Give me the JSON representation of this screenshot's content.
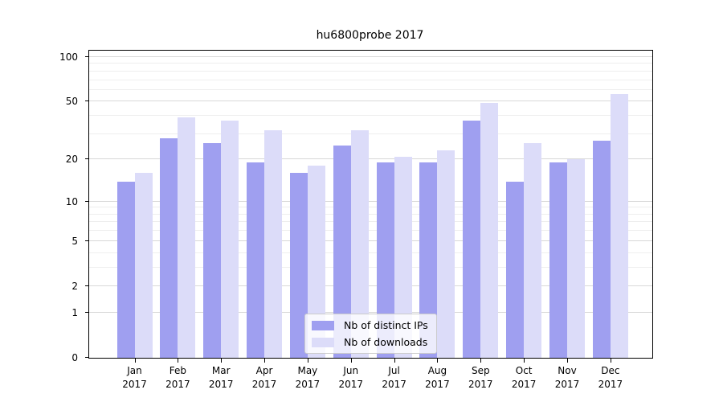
{
  "chart_data": {
    "type": "bar",
    "title": "hu6800probe 2017",
    "categories": [
      "Jan",
      "Feb",
      "Mar",
      "Apr",
      "May",
      "Jun",
      "Jul",
      "Aug",
      "Sep",
      "Oct",
      "Nov",
      "Dec"
    ],
    "category_year": "2017",
    "series": [
      {
        "name": "Nb of distinct IPs",
        "color": "#9f9ff0",
        "values": [
          14,
          28,
          26,
          19,
          16,
          25,
          19,
          19,
          37,
          14,
          19,
          27
        ]
      },
      {
        "name": "Nb of downloads",
        "color": "#dcdcf9",
        "values": [
          16,
          39,
          37,
          32,
          18,
          32,
          21,
          23,
          49,
          26,
          20,
          56
        ]
      }
    ],
    "yscale": "log1p",
    "y_ticks": [
      0,
      1,
      2,
      5,
      10,
      20,
      50,
      100
    ],
    "y_minor_gridlines": [
      3,
      4,
      6,
      7,
      8,
      9,
      30,
      40,
      60,
      70,
      80,
      90
    ],
    "ylim": [
      0,
      111
    ],
    "grid": "horizontal",
    "legend_position": "bottom-center"
  }
}
